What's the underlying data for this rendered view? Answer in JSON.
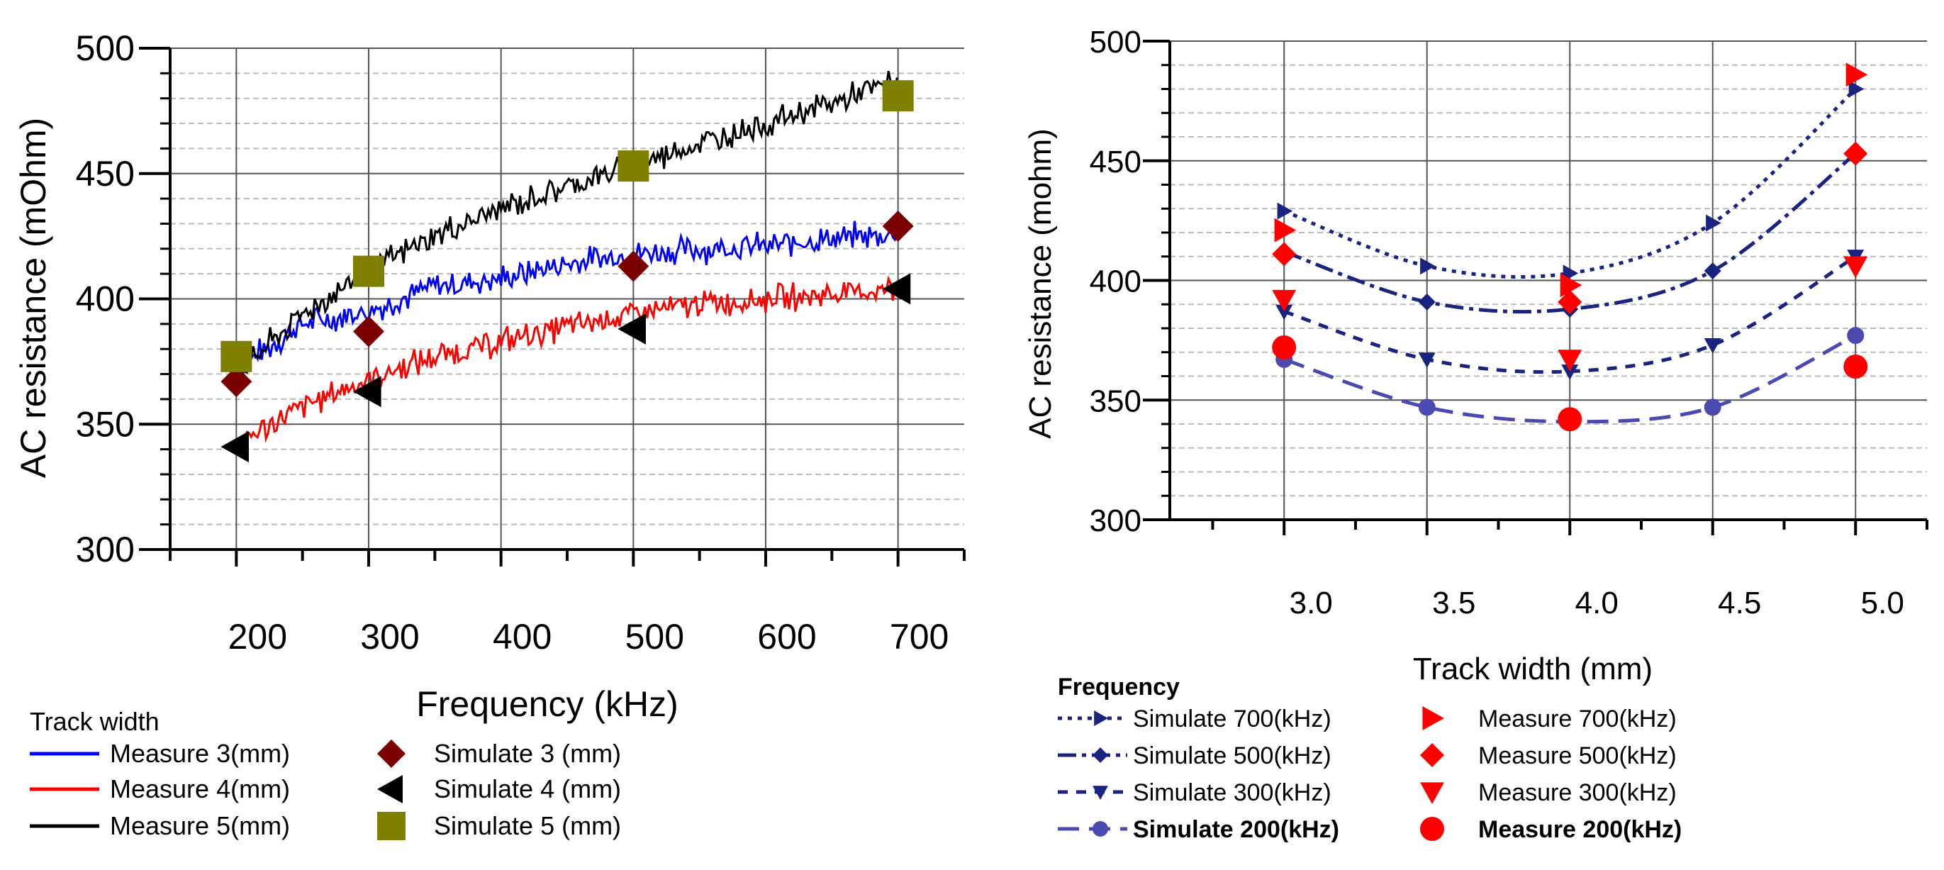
{
  "chart_data": [
    {
      "type": "line",
      "title": "",
      "xlabel": "Frequency (kHz)",
      "ylabel": "AC resistance (mOhm)",
      "xlim": [
        150,
        750
      ],
      "ylim": [
        300,
        500
      ],
      "xticks": [
        200,
        300,
        400,
        500,
        600,
        700
      ],
      "yticks": [
        300,
        350,
        400,
        450,
        500
      ],
      "grid": true,
      "legend_title": "Track width",
      "legend_position": "bottom",
      "series": [
        {
          "name": "Measure 3(mm)",
          "kind": "measured-line",
          "color": "#0000ff",
          "x": [
            200,
            250,
            300,
            350,
            400,
            450,
            500,
            550,
            600,
            650,
            700
          ],
          "y": [
            372,
            390,
            395,
            405,
            408,
            414,
            418,
            420,
            421,
            424,
            426
          ]
        },
        {
          "name": "Measure 4(mm)",
          "kind": "measured-line",
          "color": "#ff0000",
          "x": [
            200,
            250,
            300,
            350,
            400,
            450,
            500,
            550,
            600,
            650,
            700
          ],
          "y": [
            342,
            357,
            368,
            377,
            383,
            389,
            394,
            398,
            400,
            402,
            404
          ]
        },
        {
          "name": "Measure 5(mm)",
          "kind": "measured-line",
          "color": "#000000",
          "x": [
            200,
            250,
            300,
            350,
            400,
            450,
            500,
            550,
            600,
            650,
            700
          ],
          "y": [
            370,
            394,
            411,
            425,
            436,
            445,
            453,
            462,
            470,
            478,
            487
          ]
        },
        {
          "name": "Simulate 3 (mm)",
          "kind": "simulated-marker",
          "marker": "diamond",
          "color": "#7b0000",
          "x": [
            200,
            300,
            500,
            700
          ],
          "y": [
            367,
            387,
            413,
            429
          ]
        },
        {
          "name": "Simulate 4 (mm)",
          "kind": "simulated-marker",
          "marker": "triangle-left",
          "color": "#000000",
          "x": [
            200,
            300,
            500,
            700
          ],
          "y": [
            341,
            363,
            388,
            404
          ]
        },
        {
          "name": "Simulate 5 (mm)",
          "kind": "simulated-marker",
          "marker": "square",
          "color": "#808000",
          "x": [
            200,
            300,
            500,
            700
          ],
          "y": [
            377,
            411,
            453,
            481
          ]
        }
      ]
    },
    {
      "type": "line",
      "title": "",
      "xlabel": "Track width (mm)",
      "ylabel": "AC resistance (mohm)",
      "xlim": [
        2.6,
        5.25
      ],
      "ylim": [
        300,
        500
      ],
      "xticks": [
        3.0,
        3.5,
        4.0,
        4.5,
        5.0
      ],
      "xtick_labels": [
        "3.0",
        "3.5",
        "4.0",
        "4.5",
        "5.0"
      ],
      "yticks": [
        300,
        350,
        400,
        450,
        500
      ],
      "grid": true,
      "legend_title": "Frequency",
      "legend_position": "bottom",
      "series": [
        {
          "name": "Simulate 700(kHz)",
          "kind": "simulated-line",
          "marker": "triangle-right",
          "dash": "dot",
          "color": "#1a237e",
          "x": [
            3.0,
            3.5,
            4.0,
            4.5,
            5.0
          ],
          "y": [
            429,
            406,
            403,
            424,
            480
          ]
        },
        {
          "name": "Simulate 500(kHz)",
          "kind": "simulated-line",
          "marker": "diamond",
          "dash": "dashdot",
          "color": "#1a237e",
          "x": [
            3.0,
            3.5,
            4.0,
            4.5,
            5.0
          ],
          "y": [
            412,
            391,
            388,
            404,
            453
          ]
        },
        {
          "name": "Simulate  300(kHz)",
          "kind": "simulated-line",
          "marker": "triangle-down",
          "dash": "dash",
          "color": "#1a237e",
          "x": [
            3.0,
            3.5,
            4.0,
            4.5,
            5.0
          ],
          "y": [
            387,
            367,
            362,
            373,
            410
          ]
        },
        {
          "name": "Simulate  200(kHz)",
          "kind": "simulated-line",
          "marker": "circle",
          "dash": "longdash",
          "color": "#4a4ab0",
          "x": [
            3.0,
            3.5,
            4.0,
            4.5,
            5.0
          ],
          "y": [
            367,
            347,
            341,
            347,
            377
          ]
        },
        {
          "name": "Measure 700(kHz)",
          "kind": "measured-marker",
          "marker": "triangle-right",
          "color": "#ff0000",
          "x": [
            3.0,
            4.0,
            5.0
          ],
          "y": [
            421,
            398,
            486
          ]
        },
        {
          "name": "Measure  500(kHz)",
          "kind": "measured-marker",
          "marker": "diamond",
          "color": "#ff0000",
          "x": [
            3.0,
            4.0,
            5.0
          ],
          "y": [
            411,
            391,
            453
          ]
        },
        {
          "name": "Measure  300(kHz)",
          "kind": "measured-marker",
          "marker": "triangle-down",
          "color": "#ff0000",
          "x": [
            3.0,
            4.0,
            5.0
          ],
          "y": [
            392,
            367,
            406
          ]
        },
        {
          "name": "Measure  200(kHz)",
          "kind": "measured-marker",
          "marker": "circle",
          "color": "#ff0000",
          "x": [
            3.0,
            4.0,
            5.0
          ],
          "y": [
            372,
            342,
            364
          ]
        }
      ]
    }
  ]
}
